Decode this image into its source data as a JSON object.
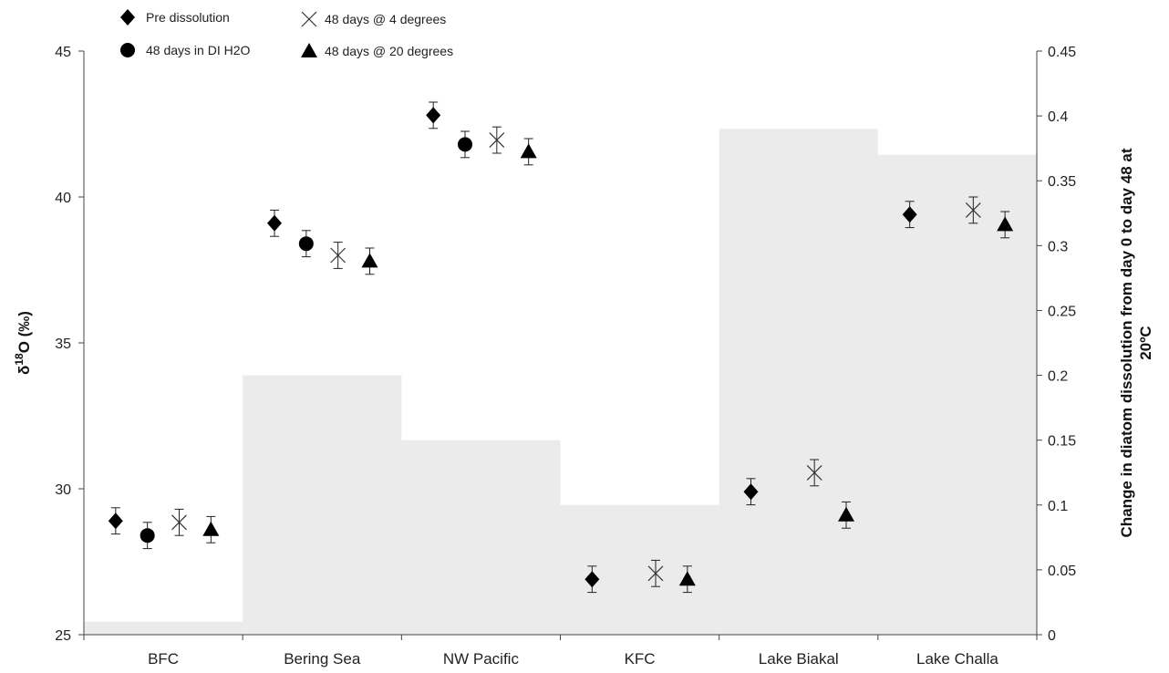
{
  "chart_data": {
    "type": "bar-and-scatter",
    "categories": [
      "BFC",
      "Bering Sea",
      "NW Pacific",
      "KFC",
      "Lake Biakal",
      "Lake Challa"
    ],
    "left_axis": {
      "label_prefix": "δ",
      "label_sup": "18",
      "label_suffix": "O (‰)",
      "ylim": [
        25,
        45
      ],
      "ticks": [
        25,
        30,
        35,
        40,
        45
      ]
    },
    "right_axis": {
      "label_line1": "Change in diatom dissolution from day 0 to day 48 at",
      "label_line2": "20ºC",
      "ylim": [
        0,
        0.45
      ],
      "ticks": [
        "0",
        "0.05",
        "0.1",
        "0.15",
        "0.2",
        "0.25",
        "0.3",
        "0.35",
        "0.4",
        "0.45"
      ]
    },
    "bars": {
      "color": "#ebebeb",
      "values": [
        0.01,
        0.2,
        0.15,
        0.1,
        0.39,
        0.37
      ]
    },
    "series": [
      {
        "name": "Pre dissolution",
        "marker": "diamond",
        "values": [
          28.9,
          39.1,
          42.8,
          26.9,
          29.9,
          39.4
        ],
        "errors": [
          0.45,
          0.45,
          0.45,
          0.45,
          0.45,
          0.45
        ]
      },
      {
        "name": "48 days in DI H2O",
        "marker": "circle",
        "values": [
          28.4,
          38.4,
          41.8,
          null,
          null,
          null
        ],
        "errors": [
          0.45,
          0.45,
          0.45,
          null,
          null,
          null
        ]
      },
      {
        "name": "48 days @ 4 degrees",
        "marker": "x",
        "values": [
          28.85,
          38.0,
          41.95,
          27.1,
          30.55,
          39.55
        ],
        "errors": [
          0.45,
          0.45,
          0.45,
          0.45,
          0.45,
          0.45
        ]
      },
      {
        "name": "48 days @ 20 degrees",
        "marker": "triangle",
        "values": [
          28.6,
          37.8,
          41.55,
          26.9,
          29.1,
          39.05
        ],
        "errors": [
          0.45,
          0.45,
          0.45,
          0.45,
          0.45,
          0.45
        ]
      }
    ],
    "legend_position": "top-left"
  }
}
